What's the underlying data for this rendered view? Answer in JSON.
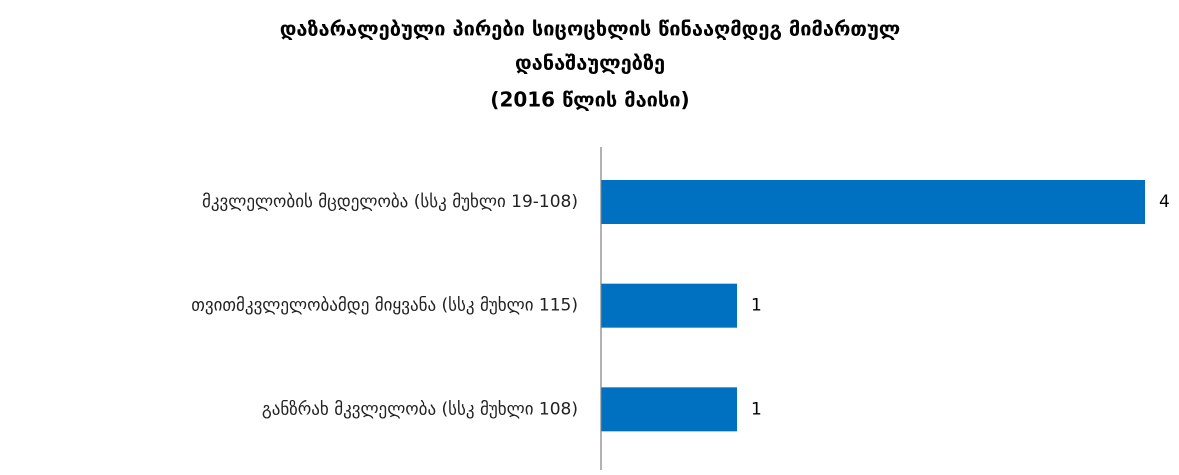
{
  "chart_data": {
    "type": "bar",
    "orientation": "horizontal",
    "title": [
      "დაზარალებული პირები სიცოცხლის წინააღმდეგ მიმართულ",
      "დანაშაულებზე",
      "(2016 წლის მაისი)"
    ],
    "categories": [
      "მკვლელობის მცდელობა (სსკ მუხლი 19-108)",
      "თვითმკვლელობამდე მიყვანა (სსკ მუხლი 115)",
      "განზრახ მკვლელობა (სსკ მუხლი 108)"
    ],
    "values": [
      4,
      1,
      1
    ],
    "color": "#0070c0",
    "xlim": [
      0,
      4
    ]
  }
}
